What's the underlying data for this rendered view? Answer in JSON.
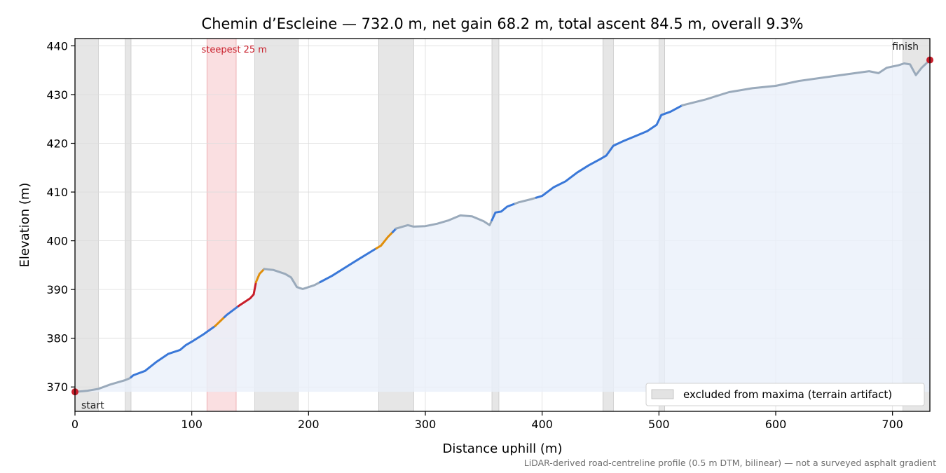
{
  "chart_data": {
    "type": "line",
    "title": "Chemin d’Escleine — 732.0 m, net gain 68.2 m, total ascent 84.5 m, overall 9.3%",
    "xlabel": "Distance uphill (m)",
    "ylabel": "Elevation (m)",
    "xlim": [
      0,
      732
    ],
    "ylim": [
      365,
      441.5
    ],
    "x_ticks": [
      "0",
      "100",
      "200",
      "300",
      "400",
      "500",
      "600",
      "700"
    ],
    "y_ticks": [
      "370",
      "380",
      "390",
      "400",
      "410",
      "420",
      "430",
      "440"
    ],
    "grid": true,
    "legend": {
      "location": "bottom-right",
      "entries": [
        "excluded from maxima (terrain artifact)"
      ]
    },
    "excluded_ranges": [
      [
        0,
        20
      ],
      [
        43,
        48
      ],
      [
        154,
        191
      ],
      [
        260,
        290
      ],
      [
        357,
        363
      ],
      [
        452,
        461
      ],
      [
        500,
        505
      ],
      [
        709,
        732
      ]
    ],
    "steepest_range": [
      113,
      138
    ],
    "annotations": {
      "steepest": "steepest 25 m",
      "start": "start",
      "finish": "finish"
    },
    "footnote": "LiDAR-derived road-centreline profile (0.5 m DTM, bilinear) — not a surveyed asphalt gradient",
    "colors": {
      "profile_gray": "#9aaabb",
      "profile_blue": "#3a78d8",
      "profile_orange": "#e08e0b",
      "profile_red": "#c81e2a",
      "fill": "#eaf0fa",
      "excluded": "#c8c8c8",
      "steepest": "#f5c4c8",
      "marker": "#c81e2a"
    },
    "series": [
      {
        "points": [
          [
            0,
            369.0
          ],
          [
            10,
            369.2
          ],
          [
            20,
            369.6
          ],
          [
            30,
            370.5
          ],
          [
            40,
            371.2
          ],
          [
            43,
            371.4
          ],
          [
            47,
            371.8
          ],
          [
            50,
            372.4
          ],
          [
            60,
            373.3
          ],
          [
            70,
            375.2
          ],
          [
            80,
            376.8
          ],
          [
            90,
            377.6
          ],
          [
            95,
            378.6
          ],
          [
            100,
            379.3
          ],
          [
            110,
            380.8
          ],
          [
            120,
            382.5
          ],
          [
            130,
            384.8
          ],
          [
            140,
            386.6
          ],
          [
            150,
            388.2
          ],
          [
            153,
            389.0
          ],
          [
            155,
            391.5
          ],
          [
            158,
            393.2
          ],
          [
            162,
            394.2
          ],
          [
            170,
            394.0
          ],
          [
            180,
            393.2
          ],
          [
            185,
            392.5
          ],
          [
            190,
            390.5
          ],
          [
            195,
            390.1
          ],
          [
            205,
            390.9
          ],
          [
            220,
            392.8
          ],
          [
            240,
            395.8
          ],
          [
            255,
            398.0
          ],
          [
            262,
            399.0
          ],
          [
            268,
            400.8
          ],
          [
            275,
            402.5
          ],
          [
            285,
            403.2
          ],
          [
            290,
            402.9
          ],
          [
            300,
            403.0
          ],
          [
            310,
            403.5
          ],
          [
            320,
            404.2
          ],
          [
            330,
            405.2
          ],
          [
            340,
            405.0
          ],
          [
            350,
            404.0
          ],
          [
            355,
            403.2
          ],
          [
            360,
            405.8
          ],
          [
            365,
            406.0
          ],
          [
            370,
            407.0
          ],
          [
            380,
            407.9
          ],
          [
            390,
            408.5
          ],
          [
            400,
            409.2
          ],
          [
            410,
            411.0
          ],
          [
            420,
            412.2
          ],
          [
            430,
            414.0
          ],
          [
            440,
            415.5
          ],
          [
            450,
            416.8
          ],
          [
            455,
            417.5
          ],
          [
            461,
            419.5
          ],
          [
            470,
            420.5
          ],
          [
            480,
            421.5
          ],
          [
            490,
            422.5
          ],
          [
            498,
            423.8
          ],
          [
            502,
            425.8
          ],
          [
            510,
            426.5
          ],
          [
            520,
            427.8
          ],
          [
            540,
            429.0
          ],
          [
            560,
            430.5
          ],
          [
            580,
            431.3
          ],
          [
            600,
            431.8
          ],
          [
            620,
            432.8
          ],
          [
            650,
            433.8
          ],
          [
            680,
            434.8
          ],
          [
            688,
            434.4
          ],
          [
            695,
            435.5
          ],
          [
            705,
            436.0
          ],
          [
            710,
            436.4
          ],
          [
            715,
            436.2
          ],
          [
            720,
            434.0
          ],
          [
            725,
            435.5
          ],
          [
            732,
            437.1
          ]
        ],
        "segments": [
          {
            "range": [
              0,
              48
            ],
            "color": "gray"
          },
          {
            "range": [
              48,
              120
            ],
            "color": "blue"
          },
          {
            "range": [
              120,
              128
            ],
            "color": "orange"
          },
          {
            "range": [
              128,
              140
            ],
            "color": "blue"
          },
          {
            "range": [
              140,
              155
            ],
            "color": "red"
          },
          {
            "range": [
              155,
              162
            ],
            "color": "orange"
          },
          {
            "range": [
              162,
              210
            ],
            "color": "gray"
          },
          {
            "range": [
              210,
              258
            ],
            "color": "blue"
          },
          {
            "range": [
              258,
              272
            ],
            "color": "orange"
          },
          {
            "range": [
              272,
              275
            ],
            "color": "blue"
          },
          {
            "range": [
              275,
              357
            ],
            "color": "gray"
          },
          {
            "range": [
              357,
              377
            ],
            "color": "blue"
          },
          {
            "range": [
              377,
              395
            ],
            "color": "gray"
          },
          {
            "range": [
              395,
              520
            ],
            "color": "blue"
          },
          {
            "range": [
              520,
              732
            ],
            "color": "gray"
          }
        ]
      }
    ]
  }
}
